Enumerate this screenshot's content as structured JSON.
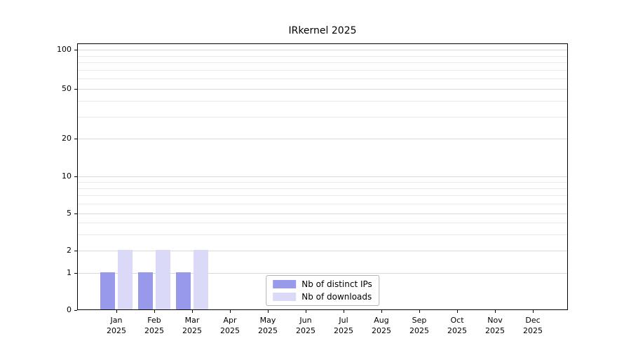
{
  "chart_data": {
    "type": "bar",
    "title": "IRkernel 2025",
    "categories": [
      "Jan 2025",
      "Feb 2025",
      "Mar 2025",
      "Apr 2025",
      "May 2025",
      "Jun 2025",
      "Jul 2025",
      "Aug 2025",
      "Sep 2025",
      "Oct 2025",
      "Nov 2025",
      "Dec 2025"
    ],
    "series": [
      {
        "name": "Nb of distinct IPs",
        "color": "#9999ec",
        "values": [
          1,
          1,
          1,
          0,
          0,
          0,
          0,
          0,
          0,
          0,
          0,
          0
        ]
      },
      {
        "name": "Nb of downloads",
        "color": "#dadaf8",
        "values": [
          2,
          2,
          2,
          0,
          0,
          0,
          0,
          0,
          0,
          0,
          0,
          0
        ]
      }
    ],
    "yscale": "symlog",
    "yticks": [
      0,
      1,
      2,
      5,
      10,
      20,
      50,
      100
    ],
    "yminorticks": [
      3,
      4,
      6,
      7,
      8,
      9,
      30,
      40,
      60,
      70,
      80,
      90
    ],
    "ylim": [
      0,
      110
    ],
    "grid": "horizontal",
    "legend_position": "lower center"
  }
}
